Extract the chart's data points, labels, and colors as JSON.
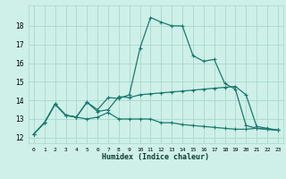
{
  "xlabel": "Humidex (Indice chaleur)",
  "bg_color": "#cef0e8",
  "line_color": "#1a7a6e",
  "grid_color": "#a8d8cf",
  "xlim": [
    -0.5,
    23.5
  ],
  "ylim": [
    11.7,
    19.1
  ],
  "xticks": [
    0,
    1,
    2,
    3,
    4,
    5,
    6,
    7,
    8,
    9,
    10,
    11,
    12,
    13,
    14,
    15,
    16,
    17,
    18,
    19,
    20,
    21,
    22,
    23
  ],
  "yticks": [
    12,
    13,
    14,
    15,
    16,
    17,
    18
  ],
  "series1": [
    12.2,
    12.8,
    13.8,
    13.2,
    13.1,
    13.9,
    13.5,
    14.15,
    14.1,
    14.3,
    16.8,
    18.45,
    18.2,
    18.0,
    18.0,
    16.4,
    16.1,
    16.2,
    14.9,
    14.6,
    12.65,
    12.5,
    12.45,
    12.4
  ],
  "series2": [
    12.2,
    12.8,
    13.8,
    13.2,
    13.1,
    13.9,
    13.4,
    13.5,
    14.2,
    14.15,
    14.3,
    14.35,
    14.4,
    14.45,
    14.5,
    14.55,
    14.6,
    14.65,
    14.7,
    14.75,
    14.3,
    12.6,
    12.5,
    12.4
  ],
  "series3": [
    12.2,
    12.8,
    13.8,
    13.2,
    13.1,
    13.0,
    13.1,
    13.35,
    13.0,
    13.0,
    13.0,
    13.0,
    12.8,
    12.8,
    12.7,
    12.65,
    12.6,
    12.55,
    12.5,
    12.45,
    12.45,
    12.5,
    12.45,
    12.4
  ]
}
